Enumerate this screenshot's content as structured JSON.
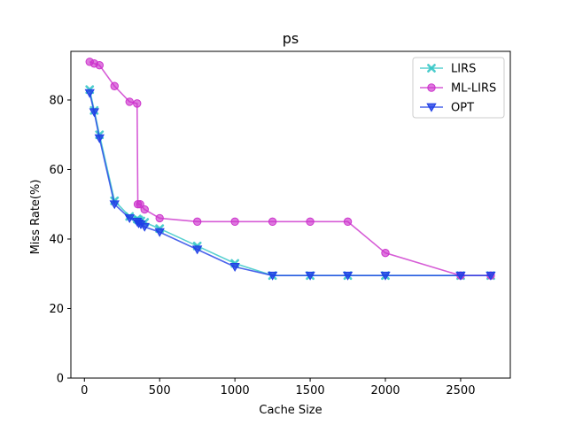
{
  "chart_data": {
    "type": "line",
    "title": "ps",
    "xlabel": "Cache Size",
    "ylabel": "Miss Rate(%)",
    "xlim": [
      -90,
      2830
    ],
    "ylim": [
      0,
      94
    ],
    "xticks": [
      0,
      500,
      1000,
      1500,
      2000,
      2500
    ],
    "yticks": [
      0,
      20,
      40,
      60,
      80
    ],
    "grid": false,
    "legend_position": "top-right",
    "series": [
      {
        "name": "LIRS",
        "color": "#2ec4c4",
        "marker": "x",
        "x": [
          35,
          65,
          100,
          200,
          300,
          350,
          360,
          375,
          400,
          500,
          750,
          1000,
          1250,
          1500,
          1750,
          2000,
          2500,
          2700
        ],
        "y": [
          83,
          77,
          70,
          51,
          46.5,
          45.8,
          45.5,
          45.2,
          44.8,
          43,
          38,
          33,
          29.5,
          29.5,
          29.5,
          29.5,
          29.5,
          29.5
        ]
      },
      {
        "name": "ML-LIRS",
        "color": "#cc33cc",
        "marker": "circle",
        "x": [
          35,
          65,
          100,
          200,
          300,
          350,
          355,
          370,
          400,
          500,
          750,
          1000,
          1250,
          1500,
          1750,
          2000,
          2500,
          2700
        ],
        "y": [
          91,
          90.5,
          90,
          84,
          79.5,
          79,
          50,
          50,
          48.5,
          46,
          45,
          45,
          45,
          45,
          45,
          36,
          29.5,
          29.5
        ]
      },
      {
        "name": "OPT",
        "color": "#1f3fe6",
        "marker": "triangle-down",
        "x": [
          35,
          65,
          100,
          200,
          300,
          350,
          360,
          375,
          400,
          500,
          750,
          1000,
          1250,
          1500,
          1750,
          2000,
          2500,
          2700
        ],
        "y": [
          82,
          76.5,
          69,
          50,
          46,
          45,
          44.5,
          44.2,
          43.5,
          42,
          37,
          32,
          29.5,
          29.5,
          29.5,
          29.5,
          29.5,
          29.5
        ]
      }
    ]
  }
}
